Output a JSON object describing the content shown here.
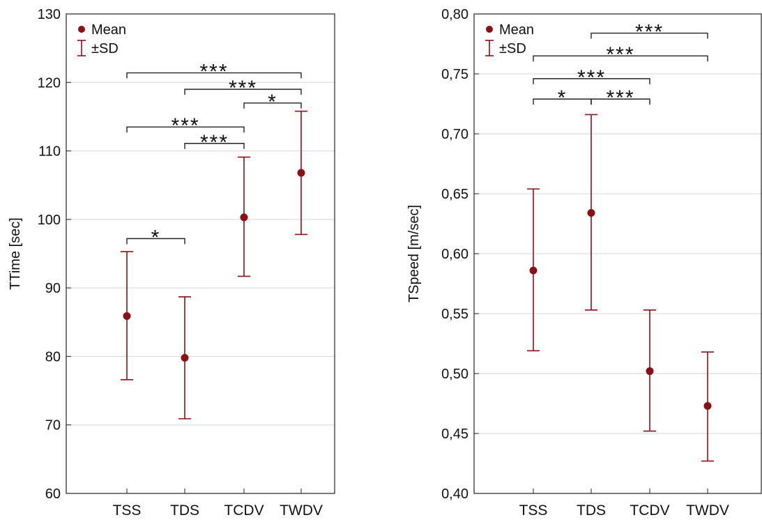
{
  "chart_data": [
    {
      "type": "error-bar",
      "categories": [
        "TSS",
        "TDS",
        "TCDV",
        "TWDV"
      ],
      "ylabel": "TTime [sec]",
      "ylim": [
        60,
        130
      ],
      "yticks": [
        "60",
        "70",
        "80",
        "90",
        "100",
        "110",
        "120",
        "130"
      ],
      "legend": {
        "placement": "top-left",
        "mean_label": "Mean",
        "sd_label": "±SD"
      },
      "grid": true,
      "color": "#8b0f14",
      "series": [
        {
          "name": "Mean",
          "values": [
            85.9,
            79.8,
            100.3,
            106.8
          ]
        },
        {
          "name": "±SD",
          "lower": [
            76.6,
            70.9,
            91.7,
            97.8
          ],
          "upper": [
            95.3,
            88.7,
            109.1,
            115.8
          ]
        }
      ],
      "significance": [
        {
          "from": "TSS",
          "to": "TWDV",
          "level": 121.4,
          "label": "***"
        },
        {
          "from": "TDS",
          "to": "TWDV",
          "level": 119.0,
          "label": "***"
        },
        {
          "from": "TCDV",
          "to": "TWDV",
          "level": 117.0,
          "label": "*"
        },
        {
          "from": "TSS",
          "to": "TCDV",
          "level": 113.5,
          "label": "***"
        },
        {
          "from": "TDS",
          "to": "TCDV",
          "level": 111.1,
          "label": "***"
        },
        {
          "from": "TSS",
          "to": "TDS",
          "level": 97.2,
          "label": "*"
        }
      ]
    },
    {
      "type": "error-bar",
      "categories": [
        "TSS",
        "TDS",
        "TCDV",
        "TWDV"
      ],
      "ylabel": "TSpeed [m/sec]",
      "ylim": [
        0.4,
        0.8
      ],
      "yticks": [
        "0,40",
        "0,45",
        "0,50",
        "0,55",
        "0,60",
        "0,65",
        "0,70",
        "0,75",
        "0,80"
      ],
      "legend": {
        "placement": "top-left",
        "mean_label": "Mean",
        "sd_label": "±SD"
      },
      "grid": true,
      "color": "#8b0f14",
      "series": [
        {
          "name": "Mean",
          "values": [
            0.586,
            0.634,
            0.502,
            0.473
          ]
        },
        {
          "name": "±SD",
          "lower": [
            0.519,
            0.553,
            0.452,
            0.427
          ],
          "upper": [
            0.654,
            0.716,
            0.553,
            0.518
          ]
        }
      ],
      "significance": [
        {
          "from": "TDS",
          "to": "TWDV",
          "level": 0.784,
          "label": "***"
        },
        {
          "from": "TSS",
          "to": "TWDV",
          "level": 0.765,
          "label": "***"
        },
        {
          "from": "TSS",
          "to": "TCDV",
          "level": 0.746,
          "label": "***"
        },
        {
          "from": "TSS",
          "to": "TDS",
          "level": 0.729,
          "label": "*"
        },
        {
          "from": "TDS",
          "to": "TCDV",
          "level": 0.729,
          "label": "***"
        }
      ]
    }
  ]
}
